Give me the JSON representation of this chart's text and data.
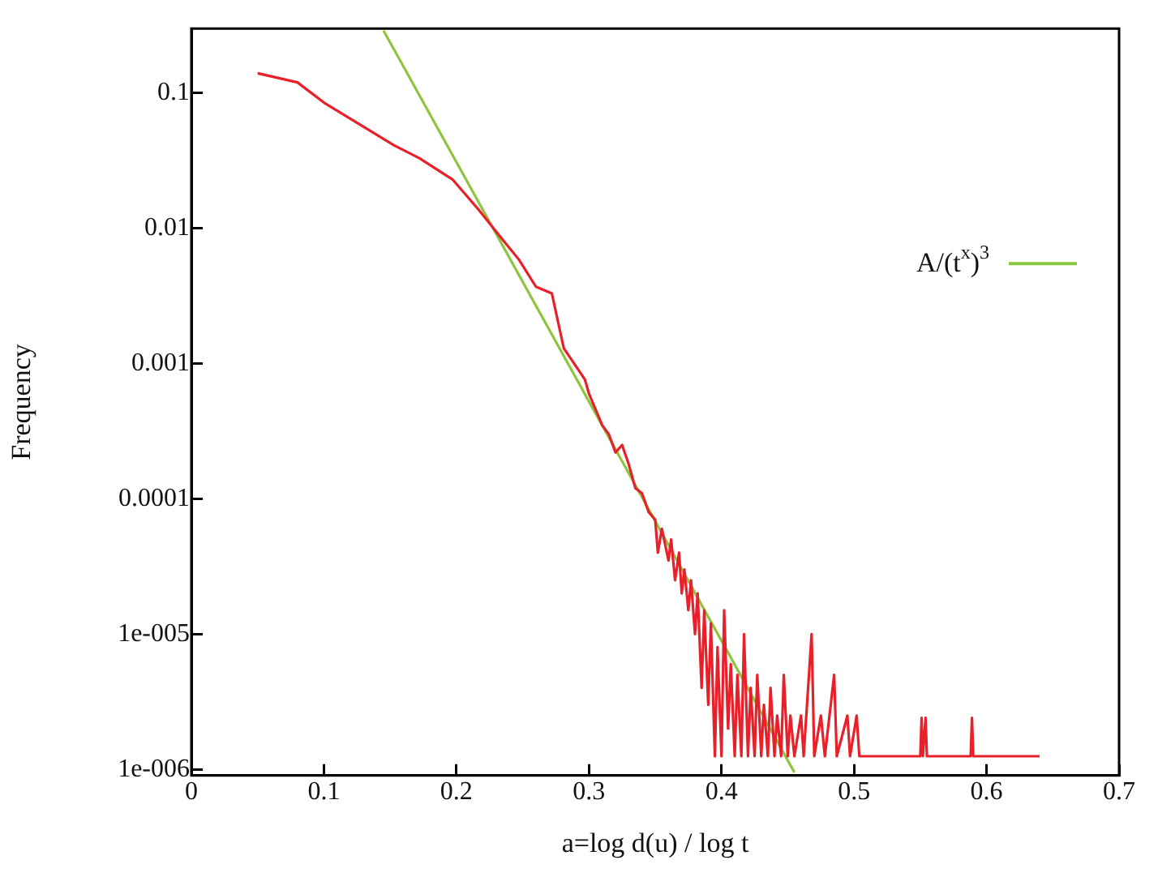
{
  "chart_data": {
    "type": "line",
    "xlabel": "a=log d(u) / log t",
    "ylabel": "Frequency",
    "log": "y",
    "xlim": [
      0,
      0.7
    ],
    "xticks": [
      0,
      0.1,
      0.2,
      0.3,
      0.4,
      0.5,
      0.6,
      0.7
    ],
    "ylim": [
      9e-07,
      0.3
    ],
    "yticks": [
      0.1,
      0.01,
      0.001,
      0.0001,
      {
        "value": 1e-05,
        "label": "1e-005"
      },
      {
        "value": 1e-06,
        "label": "1e-006"
      }
    ],
    "grid": false,
    "legend": "top right",
    "marker": "none",
    "line_style": "solid",
    "series": [
      {
        "color": "#e8202a",
        "x": [
          0.05,
          0.08,
          0.1,
          0.153,
          0.172,
          0.197,
          0.216,
          0.235,
          0.247,
          0.26,
          0.272,
          0.281,
          0.297,
          0.3,
          0.31,
          0.315,
          0.32,
          0.325,
          0.33,
          0.335,
          0.34,
          0.345,
          0.35,
          0.352,
          0.355,
          0.36,
          0.362,
          0.365,
          0.368,
          0.37,
          0.372,
          0.375,
          0.377,
          0.38,
          0.382,
          0.385,
          0.387,
          0.39,
          0.392,
          0.395,
          0.397,
          0.4,
          0.402,
          0.405,
          0.407,
          0.41,
          0.412,
          0.415,
          0.417,
          0.42,
          0.422,
          0.425,
          0.427,
          0.43,
          0.432,
          0.435,
          0.437,
          0.44,
          0.442,
          0.445,
          0.447,
          0.45,
          0.452,
          0.455,
          0.46,
          0.462,
          0.468,
          0.47,
          0.475,
          0.478,
          0.485,
          0.487,
          0.495,
          0.497,
          0.502,
          0.504,
          0.55,
          0.551,
          0.552,
          0.554,
          0.555,
          0.588,
          0.589,
          0.59,
          0.64
        ],
        "values": [
          0.14,
          0.12,
          0.085,
          0.041,
          0.033,
          0.023,
          0.014,
          0.0082,
          0.0059,
          0.0037,
          0.0033,
          0.0013,
          0.00076,
          0.0006,
          0.00035,
          0.0003,
          0.00022,
          0.00025,
          0.00018,
          0.00012,
          0.00011,
          8e-05,
          7e-05,
          4e-05,
          6e-05,
          3.5e-05,
          5e-05,
          2.5e-05,
          4e-05,
          2e-05,
          3e-05,
          1.5e-05,
          2.5e-05,
          1e-05,
          2e-05,
          4e-06,
          1.5e-05,
          3e-06,
          1.2e-05,
          1.25e-06,
          8e-06,
          1.25e-06,
          1.5e-05,
          2e-06,
          6e-06,
          1.25e-06,
          5e-06,
          1.25e-06,
          1e-05,
          1.25e-06,
          4e-06,
          1.25e-06,
          5e-06,
          1.25e-06,
          3e-06,
          1.25e-06,
          4e-06,
          1.25e-06,
          2.5e-06,
          1.25e-06,
          5e-06,
          1.25e-06,
          2.5e-06,
          1.25e-06,
          2.5e-06,
          1.25e-06,
          1e-05,
          1.25e-06,
          2.5e-06,
          1.25e-06,
          5e-06,
          1.25e-06,
          2.5e-06,
          1.25e-06,
          2.5e-06,
          1.25e-06,
          1.25e-06,
          2.4e-06,
          1.25e-06,
          2.4e-06,
          1.25e-06,
          1.25e-06,
          2.4e-06,
          1.25e-06,
          1.25e-06
        ]
      },
      {
        "name": "A/(t$^{x}$)$^{3}$",
        "color": "#8cc63f",
        "x": [
          0.145,
          0.455
        ],
        "values": [
          0.29,
          9.5e-07
        ]
      }
    ]
  }
}
